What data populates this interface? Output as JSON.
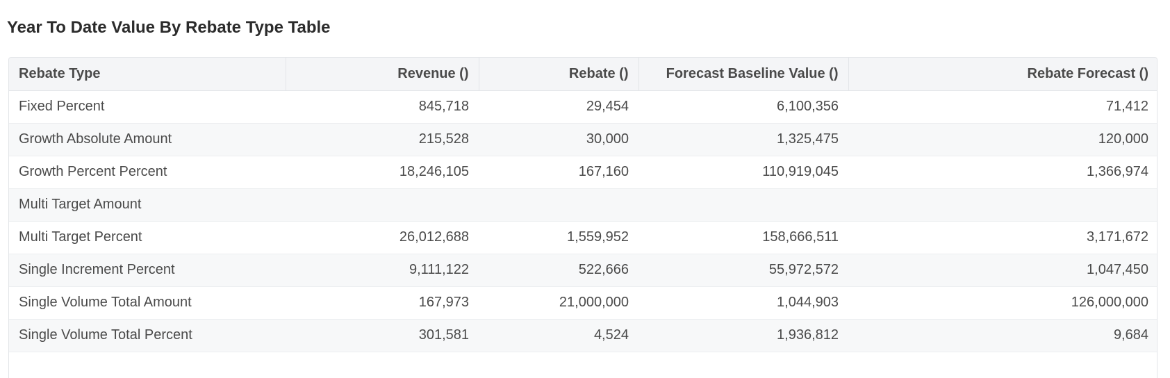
{
  "title": "Year To Date Value By Rebate Type Table",
  "table": {
    "columns": [
      {
        "label": "Rebate Type",
        "align": "left"
      },
      {
        "label": "Revenue ()",
        "align": "right"
      },
      {
        "label": "Rebate ()",
        "align": "right"
      },
      {
        "label": "Forecast Baseline Value ()",
        "align": "right"
      },
      {
        "label": "Rebate Forecast ()",
        "align": "right"
      }
    ],
    "rows": [
      [
        "Fixed Percent",
        "845,718",
        "29,454",
        "6,100,356",
        "71,412"
      ],
      [
        "Growth Absolute Amount",
        "215,528",
        "30,000",
        "1,325,475",
        "120,000"
      ],
      [
        "Growth Percent Percent",
        "18,246,105",
        "167,160",
        "110,919,045",
        "1,366,974"
      ],
      [
        "Multi Target Amount",
        "",
        "",
        "",
        ""
      ],
      [
        "Multi Target Percent",
        "26,012,688",
        "1,559,952",
        "158,666,511",
        "3,171,672"
      ],
      [
        "Single Increment Percent",
        "9,111,122",
        "522,666",
        "55,972,572",
        "1,047,450"
      ],
      [
        "Single Volume Total Amount",
        "167,973",
        "21,000,000",
        "1,044,903",
        "126,000,000"
      ],
      [
        "Single Volume Total Percent",
        "301,581",
        "4,524",
        "1,936,812",
        "9,684"
      ]
    ]
  }
}
